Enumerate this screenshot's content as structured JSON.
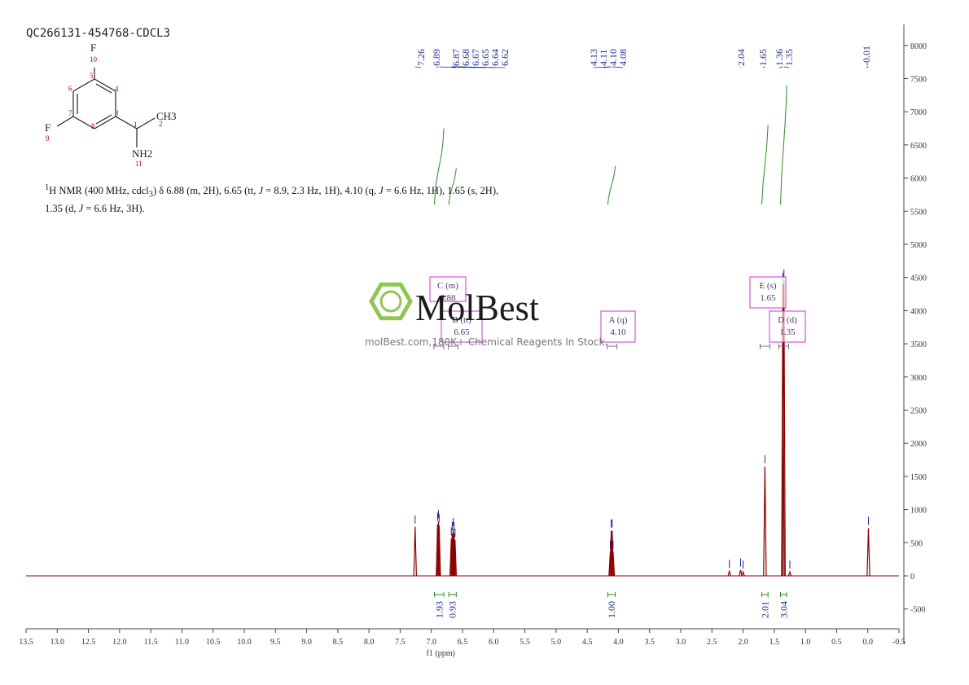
{
  "sample_id": "QC266131-454768-CDCL3",
  "nmr_description": "1H NMR (400 MHz, cdcl3) δ 6.88 (m, 2H), 6.65 (tt, J = 8.9, 2.3 Hz, 1H), 4.10 (q, J = 6.6 Hz, 1H), 1.65 (s, 2H), 1.35 (d, J = 6.6 Hz, 3H).",
  "nmr_parts": {
    "sup": "1",
    "head": "H NMR (400 MHz, cdcl",
    "sub": "3",
    "mid1": ") δ 6.88 (m, 2H), 6.65 (tt, ",
    "j1": "J",
    "mid2": " = 8.9, 2.3 Hz, 1H), 4.10 (q, ",
    "j2": "J",
    "mid3": " = 6.6 Hz, 1H), 1.65 (s, 2H), 1.35 (d, ",
    "j3": "J",
    "tail": " = 6.6 Hz, 3H)."
  },
  "watermark": {
    "brand": "MolBest",
    "tagline": "molBest.com,180K+ Chemical Reagents In Stock."
  },
  "molecule": {
    "atoms": [
      {
        "symbol": "F",
        "num": "10"
      },
      {
        "symbol": "F",
        "num": "9"
      },
      {
        "symbol": "CH3",
        "num": "2"
      },
      {
        "symbol": "NH2",
        "num": "11"
      }
    ],
    "ring_numbers": [
      "5",
      "4",
      "6",
      "7",
      "3",
      "8",
      "1"
    ]
  },
  "colors": {
    "spectrum": "#8b0000",
    "integral": "#2a8a2a",
    "peak_label": "#1a2a8a",
    "annotation_box": "#cc33cc",
    "axis": "#444444",
    "atom_number": "#cc0000"
  },
  "chart_data": {
    "type": "line",
    "title": "",
    "xlabel": "f1 (ppm)",
    "ylabel": "",
    "xlim": [
      13.5,
      -0.5
    ],
    "ylim": [
      -800,
      8300
    ],
    "x_ticks": [
      "13.5",
      "13.0",
      "12.5",
      "12.0",
      "11.5",
      "11.0",
      "10.5",
      "10.0",
      "9.5",
      "9.0",
      "8.5",
      "8.0",
      "7.5",
      "7.0",
      "6.5",
      "6.0",
      "5.5",
      "5.0",
      "4.5",
      "4.0",
      "3.5",
      "3.0",
      "2.5",
      "2.0",
      "1.5",
      "1.0",
      "0.5",
      "0.0",
      "-0.5"
    ],
    "y_ticks": [
      "-500",
      "0",
      "500",
      "1000",
      "1500",
      "2000",
      "2500",
      "3000",
      "3500",
      "4000",
      "4500",
      "5000",
      "5500",
      "6000",
      "6500",
      "7000",
      "7500",
      "8000"
    ],
    "peaks": [
      {
        "ppm": 7.26,
        "height": 740
      },
      {
        "ppm": 6.9,
        "height": 780
      },
      {
        "ppm": 6.885,
        "height": 820
      },
      {
        "ppm": 6.875,
        "height": 760
      },
      {
        "ppm": 6.68,
        "height": 560
      },
      {
        "ppm": 6.665,
        "height": 640
      },
      {
        "ppm": 6.65,
        "height": 700
      },
      {
        "ppm": 6.635,
        "height": 640
      },
      {
        "ppm": 6.62,
        "height": 540
      },
      {
        "ppm": 4.13,
        "height": 360
      },
      {
        "ppm": 4.115,
        "height": 680
      },
      {
        "ppm": 4.1,
        "height": 680
      },
      {
        "ppm": 4.085,
        "height": 360
      },
      {
        "ppm": 2.22,
        "height": 70
      },
      {
        "ppm": 2.04,
        "height": 90
      },
      {
        "ppm": 2.0,
        "height": 60
      },
      {
        "ppm": 1.65,
        "height": 1650
      },
      {
        "ppm": 1.362,
        "height": 4400
      },
      {
        "ppm": 1.345,
        "height": 4450
      },
      {
        "ppm": 1.25,
        "height": 60
      },
      {
        "ppm": -0.01,
        "height": 720
      }
    ],
    "peak_labels": [
      "7.26",
      "6.89",
      "6.87",
      "6.68",
      "6.67",
      "6.65",
      "6.64",
      "6.62",
      "4.13",
      "4.11",
      "4.10",
      "4.08",
      "2.04",
      "1.65",
      "1.36",
      "1.35",
      "-0.01"
    ],
    "integrals": [
      {
        "from": 6.95,
        "to": 6.8,
        "value": "1.93",
        "base": 5600,
        "top": 6750
      },
      {
        "from": 6.72,
        "to": 6.6,
        "value": "0.93",
        "base": 5600,
        "top": 6150
      },
      {
        "from": 4.17,
        "to": 4.05,
        "value": "1.00",
        "base": 5600,
        "top": 6180
      },
      {
        "from": 1.7,
        "to": 1.6,
        "value": "2.01",
        "base": 5600,
        "top": 6800
      },
      {
        "from": 1.4,
        "to": 1.3,
        "value": "3.04",
        "base": 5600,
        "top": 7400
      }
    ],
    "multiplets": [
      {
        "label": "C (m)",
        "value": "6.88",
        "center": 6.88
      },
      {
        "label": "B (tt)",
        "value": "6.65",
        "center": 6.65
      },
      {
        "label": "A (q)",
        "value": "4.10",
        "center": 4.1
      },
      {
        "label": "E (s)",
        "value": "1.65",
        "center": 1.65
      },
      {
        "label": "D (d)",
        "value": "1.35",
        "center": 1.35
      }
    ]
  }
}
